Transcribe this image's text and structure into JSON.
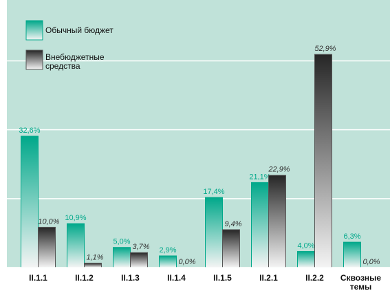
{
  "chart_data": {
    "type": "bar",
    "categories": [
      "II.1.1",
      "II.1.2",
      "II.1.3",
      "II.1.4",
      "II.1.5",
      "II.2.1",
      "II.2.2",
      "Сквозные темы"
    ],
    "series": [
      {
        "name": "Обычный бюджет",
        "color": "#00a88a",
        "values": [
          32.6,
          10.9,
          5.0,
          2.9,
          17.4,
          21.1,
          4.0,
          6.3
        ],
        "value_labels": [
          "32,6%",
          "10,9%",
          "5,0%",
          "2,9%",
          "17,4%",
          "21,1%",
          "4,0%",
          "6,3%"
        ]
      },
      {
        "name": "Внебюджетные средства",
        "color": "#262626",
        "values": [
          10.0,
          1.1,
          3.7,
          0.0,
          9.4,
          22.9,
          52.9,
          0.0
        ],
        "value_labels": [
          "10,0%",
          "1,1%",
          "3,7%",
          "0,0%",
          "9,4%",
          "22,9%",
          "52,9%",
          "0,0%"
        ]
      }
    ],
    "ylim": [
      0,
      66.4
    ],
    "yticks": [
      0,
      17.1,
      34.2,
      51.3
    ],
    "grid": true,
    "legend": "top-left"
  }
}
